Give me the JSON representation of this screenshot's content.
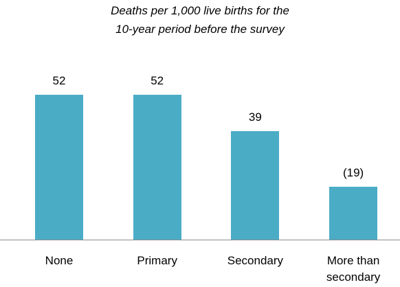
{
  "chart_data": {
    "type": "bar",
    "title": [
      "Deaths per 1,000 live births for the",
      "10-year period before the survey"
    ],
    "categories": [
      "None",
      "Primary",
      "Secondary",
      "More than secondary"
    ],
    "values": [
      52,
      52,
      39,
      19
    ],
    "value_labels": [
      "52",
      "52",
      "39",
      "(19)"
    ],
    "color": "#4bacc6"
  }
}
